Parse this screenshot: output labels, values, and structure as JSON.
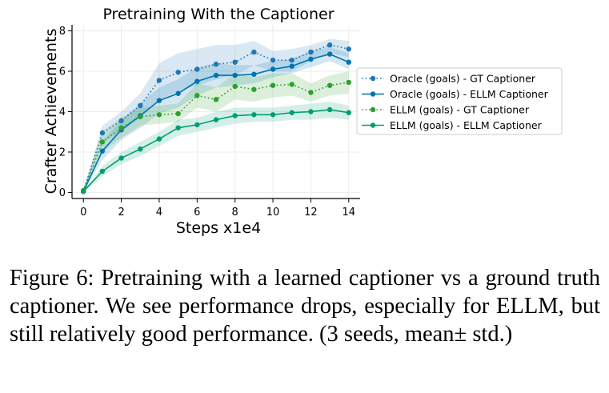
{
  "chart_data": {
    "type": "line",
    "title": "Pretraining With the Captioner",
    "xlabel": "Steps x1e4",
    "ylabel": "Crafter Achievements",
    "xlim": [
      -0.6,
      14.6
    ],
    "ylim": [
      -0.3,
      8.3
    ],
    "xticks": [
      0,
      2,
      4,
      6,
      8,
      10,
      12,
      14
    ],
    "yticks": [
      0,
      2,
      4,
      6,
      8
    ],
    "grid": true,
    "legend_position": "center-right",
    "x": [
      0,
      1,
      2,
      3,
      4,
      5,
      6,
      7,
      8,
      9,
      10,
      11,
      12,
      13,
      14
    ],
    "series": [
      {
        "name": "Oracle (goals) - GT Captioner",
        "color": "#1f77b4",
        "style": "dotted",
        "values": [
          0.05,
          2.95,
          3.55,
          4.3,
          5.55,
          5.95,
          6.1,
          6.35,
          6.45,
          6.95,
          6.55,
          6.55,
          6.95,
          7.3,
          7.1
        ],
        "lower": [
          0.0,
          2.5,
          3.0,
          3.7,
          4.6,
          5.0,
          5.3,
          5.6,
          5.8,
          6.3,
          6.0,
          6.0,
          6.5,
          6.9,
          6.7
        ],
        "upper": [
          0.1,
          3.3,
          4.0,
          4.9,
          6.4,
          6.9,
          7.1,
          7.3,
          7.3,
          7.5,
          7.0,
          7.1,
          7.3,
          7.6,
          7.5
        ]
      },
      {
        "name": "Oracle (goals) - ELLM Captioner",
        "color": "#0072b2",
        "style": "solid",
        "values": [
          0.05,
          2.05,
          3.1,
          3.8,
          4.55,
          4.9,
          5.5,
          5.8,
          5.8,
          5.85,
          6.1,
          6.25,
          6.6,
          6.85,
          6.45
        ],
        "lower": [
          0.0,
          1.6,
          2.6,
          3.2,
          3.9,
          4.2,
          4.8,
          5.2,
          5.3,
          5.4,
          5.7,
          5.9,
          6.2,
          6.5,
          6.1
        ],
        "upper": [
          0.1,
          2.5,
          3.6,
          4.4,
          5.2,
          5.6,
          6.2,
          6.4,
          6.3,
          6.3,
          6.5,
          6.6,
          7.0,
          7.2,
          6.9
        ]
      },
      {
        "name": "ELLM (goals) - GT Captioner",
        "color": "#2ca02c",
        "style": "dotted",
        "values": [
          0.1,
          2.5,
          3.2,
          3.75,
          3.85,
          3.9,
          4.8,
          4.6,
          5.25,
          5.1,
          5.3,
          5.35,
          4.95,
          5.3,
          5.45
        ],
        "lower": [
          0.0,
          2.0,
          2.7,
          3.3,
          3.4,
          3.5,
          4.2,
          4.0,
          4.6,
          4.5,
          4.7,
          4.8,
          4.5,
          4.8,
          4.9
        ],
        "upper": [
          0.2,
          3.0,
          3.7,
          4.2,
          4.3,
          4.4,
          5.4,
          5.2,
          5.9,
          5.7,
          5.9,
          5.9,
          5.4,
          5.8,
          6.0
        ]
      },
      {
        "name": "ELLM (goals) - ELLM Captioner",
        "color": "#009e73",
        "style": "solid",
        "values": [
          0.05,
          1.05,
          1.7,
          2.15,
          2.65,
          3.2,
          3.35,
          3.6,
          3.8,
          3.85,
          3.85,
          3.95,
          4.0,
          4.1,
          3.95
        ],
        "lower": [
          0.0,
          0.8,
          1.4,
          1.8,
          2.3,
          2.8,
          3.0,
          3.2,
          3.4,
          3.5,
          3.5,
          3.6,
          3.6,
          3.7,
          3.6
        ],
        "upper": [
          0.1,
          1.3,
          2.0,
          2.5,
          3.0,
          3.6,
          3.7,
          4.0,
          4.2,
          4.2,
          4.2,
          4.3,
          4.4,
          4.5,
          4.3
        ]
      }
    ]
  },
  "caption": "Figure 6: Pretraining with a learned captioner vs a ground truth captioner. We see performance drops, especially for ELLM, but still relatively good performance. (3 seeds, mean± std.)"
}
